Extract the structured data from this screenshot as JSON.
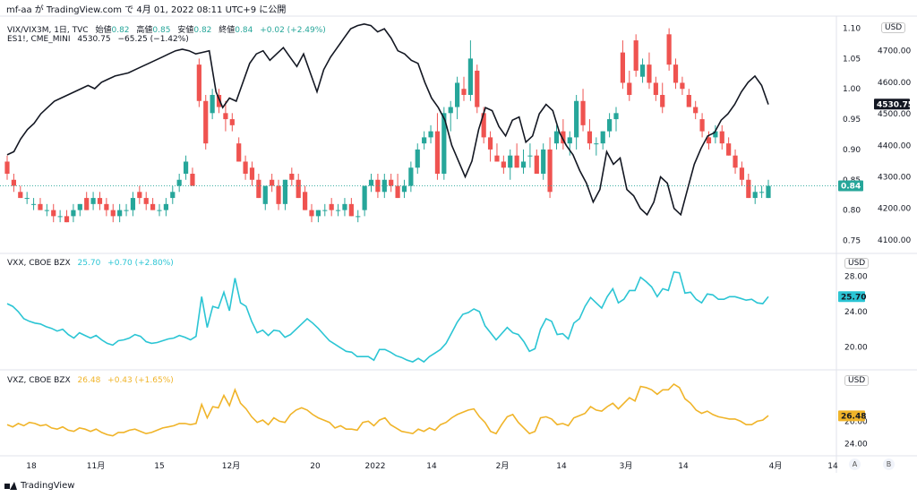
{
  "header": {
    "text": "mf-aa が TradingView.com で 4月 01, 2022 08:11 UTC+9 に公開"
  },
  "legend": {
    "main_symbol": "VIX/VIX3M, 1日, TVC",
    "open_label": "始値",
    "open_value": "0.82",
    "high_label": "高値",
    "high_value": "0.85",
    "low_label": "安値",
    "low_value": "0.82",
    "close_label": "終値",
    "close_value": "0.84",
    "change": "+0.02 (+2.49%)",
    "overlay_symbol": "ES1!, CME_MINI",
    "overlay_value": "4530.75",
    "overlay_change": "−65.25 (−1.42%)",
    "vxx_symbol": "VXX, CBOE BZX",
    "vxx_value": "25.70",
    "vxx_change": "+0.70 (+2.80%)",
    "vxz_symbol": "VXZ, CBOE BZX",
    "vxz_value": "26.48",
    "vxz_change": "+0.43 (+1.65%)"
  },
  "currency": "USD",
  "footer": {
    "brand": "TradingView"
  },
  "buttons": {
    "auto": "A",
    "b": "B"
  },
  "colors": {
    "up": "#26a69a",
    "down": "#ef5350",
    "line": "#131722",
    "vxx": "#2bc5d4",
    "vxz": "#f0b429"
  },
  "chart_data": [
    {
      "type": "candlestick",
      "name": "VIX/VIX3M",
      "axis": "right-inner",
      "y_ticks": [
        "1.10",
        "1.05",
        "1.00",
        "0.95",
        "0.90",
        "0.85",
        "0.80",
        "0.75"
      ],
      "ylim": [
        0.73,
        1.12
      ],
      "last_value_label": "0.84",
      "x_ticks": [
        "18",
        "11月",
        "15",
        "12月",
        "20",
        "2022",
        "14",
        "2月",
        "14",
        "3月",
        "14",
        "4月",
        "14"
      ],
      "ohlc": [
        [
          0.88,
          0.89,
          0.85,
          0.86
        ],
        [
          0.85,
          0.86,
          0.83,
          0.84
        ],
        [
          0.83,
          0.84,
          0.82,
          0.82
        ],
        [
          0.82,
          0.83,
          0.81,
          0.82
        ],
        [
          0.81,
          0.82,
          0.8,
          0.81
        ],
        [
          0.81,
          0.82,
          0.8,
          0.8
        ],
        [
          0.8,
          0.81,
          0.79,
          0.8
        ],
        [
          0.8,
          0.81,
          0.78,
          0.79
        ],
        [
          0.79,
          0.8,
          0.78,
          0.79
        ],
        [
          0.79,
          0.8,
          0.78,
          0.78
        ],
        [
          0.79,
          0.81,
          0.78,
          0.8
        ],
        [
          0.8,
          0.81,
          0.79,
          0.81
        ],
        [
          0.82,
          0.83,
          0.8,
          0.8
        ],
        [
          0.81,
          0.83,
          0.8,
          0.82
        ],
        [
          0.82,
          0.83,
          0.8,
          0.81
        ],
        [
          0.81,
          0.82,
          0.79,
          0.8
        ],
        [
          0.8,
          0.81,
          0.78,
          0.79
        ],
        [
          0.79,
          0.81,
          0.78,
          0.8
        ],
        [
          0.8,
          0.81,
          0.79,
          0.8
        ],
        [
          0.8,
          0.83,
          0.79,
          0.82
        ],
        [
          0.83,
          0.84,
          0.81,
          0.82
        ],
        [
          0.82,
          0.83,
          0.8,
          0.81
        ],
        [
          0.81,
          0.82,
          0.8,
          0.8
        ],
        [
          0.8,
          0.81,
          0.79,
          0.8
        ],
        [
          0.8,
          0.82,
          0.79,
          0.81
        ],
        [
          0.82,
          0.84,
          0.81,
          0.83
        ],
        [
          0.84,
          0.86,
          0.83,
          0.85
        ],
        [
          0.86,
          0.89,
          0.85,
          0.88
        ],
        [
          0.86,
          0.87,
          0.84,
          0.84
        ],
        [
          1.04,
          1.05,
          0.97,
          0.98
        ],
        [
          0.98,
          0.99,
          0.9,
          0.91
        ],
        [
          0.96,
          1.0,
          0.95,
          0.99
        ],
        [
          0.99,
          1.0,
          0.96,
          0.97
        ],
        [
          0.96,
          0.98,
          0.93,
          0.95
        ],
        [
          0.95,
          0.96,
          0.93,
          0.94
        ],
        [
          0.91,
          0.92,
          0.88,
          0.88
        ],
        [
          0.88,
          0.89,
          0.85,
          0.86
        ],
        [
          0.87,
          0.88,
          0.84,
          0.85
        ],
        [
          0.85,
          0.86,
          0.82,
          0.82
        ],
        [
          0.81,
          0.84,
          0.8,
          0.84
        ],
        [
          0.85,
          0.86,
          0.83,
          0.84
        ],
        [
          0.84,
          0.85,
          0.8,
          0.81
        ],
        [
          0.81,
          0.85,
          0.8,
          0.85
        ],
        [
          0.86,
          0.87,
          0.84,
          0.85
        ],
        [
          0.85,
          0.86,
          0.82,
          0.82
        ],
        [
          0.83,
          0.84,
          0.8,
          0.8
        ],
        [
          0.8,
          0.81,
          0.78,
          0.79
        ],
        [
          0.79,
          0.8,
          0.78,
          0.8
        ],
        [
          0.8,
          0.81,
          0.79,
          0.8
        ],
        [
          0.81,
          0.82,
          0.79,
          0.8
        ],
        [
          0.8,
          0.81,
          0.79,
          0.8
        ],
        [
          0.8,
          0.82,
          0.79,
          0.81
        ],
        [
          0.81,
          0.82,
          0.79,
          0.79
        ],
        [
          0.79,
          0.8,
          0.78,
          0.79
        ],
        [
          0.8,
          0.84,
          0.79,
          0.84
        ],
        [
          0.84,
          0.86,
          0.83,
          0.85
        ],
        [
          0.85,
          0.86,
          0.82,
          0.83
        ],
        [
          0.83,
          0.86,
          0.82,
          0.85
        ],
        [
          0.85,
          0.86,
          0.83,
          0.84
        ],
        [
          0.84,
          0.86,
          0.82,
          0.82
        ],
        [
          0.83,
          0.85,
          0.82,
          0.84
        ],
        [
          0.84,
          0.88,
          0.83,
          0.87
        ],
        [
          0.87,
          0.91,
          0.86,
          0.9
        ],
        [
          0.91,
          0.93,
          0.9,
          0.92
        ],
        [
          0.92,
          0.94,
          0.91,
          0.93
        ],
        [
          0.93,
          0.96,
          0.85,
          0.86
        ],
        [
          0.86,
          0.97,
          0.85,
          0.96
        ],
        [
          0.96,
          0.98,
          0.93,
          0.97
        ],
        [
          0.97,
          1.02,
          0.95,
          1.01
        ],
        [
          1.0,
          1.02,
          0.98,
          0.99
        ],
        [
          0.99,
          1.08,
          0.98,
          1.05
        ],
        [
          1.03,
          1.04,
          0.96,
          0.97
        ],
        [
          0.96,
          0.97,
          0.91,
          0.92
        ],
        [
          0.92,
          0.93,
          0.88,
          0.9
        ],
        [
          0.89,
          0.91,
          0.88,
          0.88
        ],
        [
          0.88,
          0.89,
          0.86,
          0.87
        ],
        [
          0.87,
          0.9,
          0.85,
          0.89
        ],
        [
          0.89,
          0.91,
          0.87,
          0.87
        ],
        [
          0.87,
          0.9,
          0.86,
          0.88
        ],
        [
          0.89,
          0.91,
          0.87,
          0.89
        ],
        [
          0.89,
          0.9,
          0.86,
          0.86
        ],
        [
          0.86,
          0.91,
          0.85,
          0.9
        ],
        [
          0.9,
          0.92,
          0.82,
          0.83
        ],
        [
          0.91,
          0.94,
          0.9,
          0.93
        ],
        [
          0.93,
          0.95,
          0.9,
          0.91
        ],
        [
          0.91,
          0.93,
          0.89,
          0.92
        ],
        [
          0.92,
          0.99,
          0.9,
          0.98
        ],
        [
          0.98,
          1.0,
          0.93,
          0.94
        ],
        [
          0.93,
          0.95,
          0.9,
          0.91
        ],
        [
          0.91,
          0.92,
          0.89,
          0.91
        ],
        [
          0.91,
          0.93,
          0.9,
          0.93
        ],
        [
          0.93,
          0.96,
          0.92,
          0.95
        ],
        [
          0.95,
          0.97,
          0.93,
          0.96
        ],
        [
          1.06,
          1.08,
          1.0,
          1.01
        ],
        [
          1.01,
          1.03,
          0.98,
          0.99
        ],
        [
          1.08,
          1.09,
          1.02,
          1.03
        ],
        [
          1.02,
          1.05,
          1.01,
          1.04
        ],
        [
          1.04,
          1.06,
          1.0,
          1.01
        ],
        [
          1.01,
          1.02,
          0.98,
          0.99
        ],
        [
          0.99,
          1.01,
          0.96,
          0.97
        ],
        [
          1.09,
          1.1,
          1.03,
          1.04
        ],
        [
          1.04,
          1.05,
          1.0,
          1.01
        ],
        [
          1.01,
          1.02,
          0.99,
          1.0
        ],
        [
          0.99,
          1.0,
          0.97,
          0.97
        ],
        [
          0.97,
          0.98,
          0.95,
          0.96
        ],
        [
          0.95,
          0.96,
          0.92,
          0.93
        ],
        [
          0.92,
          0.93,
          0.9,
          0.91
        ],
        [
          0.92,
          0.94,
          0.91,
          0.93
        ],
        [
          0.93,
          0.94,
          0.9,
          0.91
        ],
        [
          0.91,
          0.92,
          0.89,
          0.89
        ],
        [
          0.89,
          0.9,
          0.86,
          0.87
        ],
        [
          0.87,
          0.88,
          0.84,
          0.85
        ],
        [
          0.85,
          0.86,
          0.82,
          0.82
        ],
        [
          0.82,
          0.84,
          0.81,
          0.83
        ],
        [
          0.83,
          0.84,
          0.82,
          0.83
        ],
        [
          0.82,
          0.85,
          0.82,
          0.84
        ]
      ]
    },
    {
      "type": "line",
      "name": "ES1!",
      "axis": "right-outer",
      "y_ticks": [
        "4700.00",
        "4600.00",
        "4500.00",
        "4400.00",
        "4300.00",
        "4200.00",
        "4100.00"
      ],
      "ylim": [
        4060,
        4810
      ],
      "last_value_label": "4530.75",
      "values": [
        4370,
        4380,
        4420,
        4450,
        4470,
        4500,
        4520,
        4540,
        4550,
        4560,
        4570,
        4580,
        4590,
        4580,
        4600,
        4610,
        4620,
        4625,
        4630,
        4640,
        4650,
        4660,
        4670,
        4680,
        4690,
        4700,
        4705,
        4700,
        4690,
        4695,
        4700,
        4570,
        4520,
        4550,
        4540,
        4600,
        4660,
        4690,
        4700,
        4670,
        4690,
        4710,
        4680,
        4650,
        4690,
        4630,
        4570,
        4640,
        4680,
        4710,
        4740,
        4770,
        4780,
        4785,
        4780,
        4760,
        4770,
        4740,
        4700,
        4690,
        4670,
        4660,
        4600,
        4550,
        4520,
        4480,
        4400,
        4350,
        4300,
        4350,
        4450,
        4520,
        4510,
        4460,
        4430,
        4480,
        4490,
        4410,
        4430,
        4500,
        4530,
        4510,
        4440,
        4400,
        4370,
        4320,
        4280,
        4220,
        4260,
        4380,
        4340,
        4360,
        4260,
        4240,
        4200,
        4180,
        4220,
        4300,
        4280,
        4200,
        4180,
        4260,
        4340,
        4390,
        4430,
        4440,
        4480,
        4500,
        4530,
        4570,
        4600,
        4620,
        4590,
        4530
      ]
    },
    {
      "type": "line",
      "name": "VXX",
      "y_ticks": [
        "28.00",
        "24.00",
        "20.00"
      ],
      "ylim": [
        17.5,
        30.5
      ],
      "last_value_label": "25.70",
      "values": [
        24.9,
        24.6,
        24.0,
        23.2,
        22.9,
        22.7,
        22.6,
        22.3,
        22.1,
        21.8,
        22.0,
        21.4,
        21.0,
        21.6,
        21.3,
        21.0,
        21.3,
        20.8,
        20.4,
        20.2,
        20.7,
        20.8,
        21.0,
        21.4,
        21.2,
        20.6,
        20.4,
        20.5,
        20.7,
        20.9,
        21.0,
        21.3,
        21.1,
        20.8,
        21.2,
        25.7,
        22.2,
        24.6,
        24.4,
        26.2,
        24.1,
        27.8,
        25.0,
        24.6,
        22.9,
        21.6,
        21.9,
        21.3,
        21.9,
        21.8,
        21.1,
        21.4,
        22.0,
        22.6,
        23.2,
        22.7,
        22.1,
        21.4,
        20.7,
        20.3,
        19.9,
        19.5,
        19.4,
        18.9,
        18.9,
        18.9,
        18.5,
        19.7,
        19.7,
        19.4,
        19.0,
        18.8,
        18.5,
        18.3,
        18.7,
        18.3,
        18.9,
        19.3,
        19.7,
        20.4,
        21.6,
        22.8,
        23.7,
        23.9,
        24.3,
        24.0,
        22.4,
        21.6,
        20.8,
        21.5,
        22.2,
        21.6,
        21.4,
        20.6,
        19.5,
        19.8,
        22.0,
        23.2,
        22.9,
        21.4,
        21.5,
        20.9,
        22.7,
        23.2,
        24.6,
        25.6,
        25.0,
        24.4,
        25.7,
        26.6,
        25.0,
        25.4,
        26.4,
        26.4,
        27.9,
        27.4,
        26.8,
        25.7,
        26.6,
        26.4,
        28.5,
        28.4,
        26.1,
        26.2,
        25.4,
        25.0,
        26.0,
        25.9,
        25.4,
        25.4,
        25.7,
        25.7,
        25.5,
        25.3,
        25.4,
        25.0,
        24.9,
        25.7
      ]
    },
    {
      "type": "line",
      "name": "VXZ",
      "y_ticks": [
        "26.00",
        "24.00"
      ],
      "ylim": [
        23.0,
        30.5
      ],
      "last_value_label": "26.48",
      "values": [
        25.7,
        25.5,
        25.8,
        25.6,
        25.9,
        25.8,
        25.6,
        25.7,
        25.4,
        25.3,
        25.5,
        25.2,
        25.1,
        25.4,
        25.3,
        25.1,
        25.3,
        25.0,
        24.8,
        24.7,
        25.0,
        25.0,
        25.2,
        25.3,
        25.1,
        24.9,
        25.0,
        25.2,
        25.4,
        25.5,
        25.6,
        25.8,
        25.8,
        25.7,
        25.8,
        27.5,
        26.3,
        27.3,
        27.2,
        28.3,
        27.4,
        28.8,
        27.6,
        27.1,
        26.4,
        25.9,
        26.1,
        25.7,
        26.3,
        26.0,
        25.9,
        26.6,
        27.0,
        27.2,
        27.0,
        26.6,
        26.3,
        26.1,
        25.9,
        25.4,
        25.6,
        25.3,
        25.3,
        25.2,
        25.9,
        26.0,
        25.6,
        26.1,
        26.3,
        25.7,
        25.4,
        25.1,
        25.0,
        24.9,
        25.3,
        25.1,
        25.4,
        25.2,
        25.7,
        25.9,
        26.3,
        26.6,
        26.8,
        27.0,
        27.1,
        26.4,
        25.9,
        25.1,
        24.9,
        25.7,
        26.4,
        26.6,
        25.9,
        25.4,
        24.9,
        25.1,
        26.3,
        26.4,
        26.2,
        25.7,
        25.8,
        25.6,
        26.3,
        26.5,
        26.7,
        27.3,
        27.0,
        26.9,
        27.3,
        27.6,
        27.1,
        27.6,
        28.1,
        27.8,
        29.1,
        29.0,
        28.8,
        28.4,
        28.8,
        28.8,
        29.3,
        29.0,
        28.0,
        27.6,
        27.0,
        26.7,
        26.9,
        26.6,
        26.4,
        26.3,
        26.2,
        26.2,
        26.0,
        25.7,
        25.7,
        26.0,
        26.1,
        26.5
      ]
    }
  ]
}
